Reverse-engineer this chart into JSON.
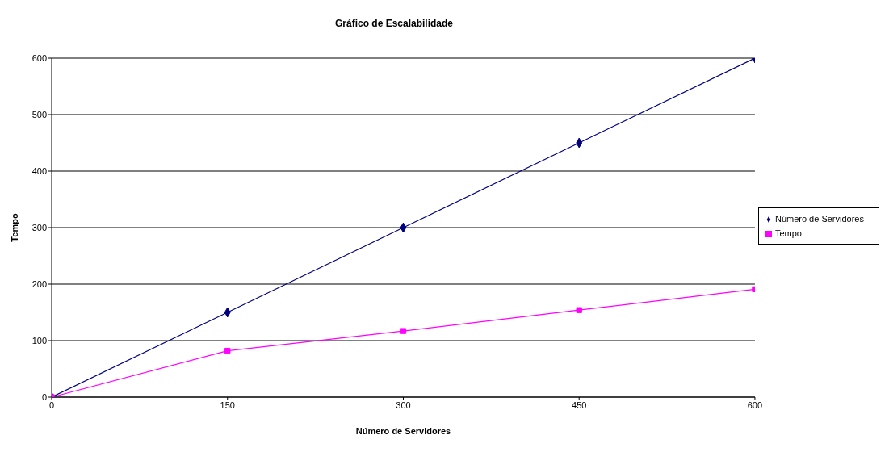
{
  "chart_data": {
    "type": "line",
    "title": "Gráfico de Escalabilidade",
    "xlabel": "Número de Servidores",
    "ylabel": "Tempo",
    "x": [
      0,
      150,
      300,
      450,
      600
    ],
    "series": [
      {
        "name": "Número de Servidores",
        "color": "#000080",
        "marker": "diamond",
        "values": [
          0,
          150,
          300,
          450,
          600
        ]
      },
      {
        "name": "Tempo",
        "color": "#ff00ff",
        "marker": "square",
        "values": [
          0,
          82,
          117,
          154,
          191
        ]
      }
    ],
    "xlim": [
      0,
      600
    ],
    "xticks": [
      0,
      150,
      300,
      450,
      600
    ],
    "ylim": [
      0,
      600
    ],
    "yticks": [
      0,
      100,
      200,
      300,
      400,
      500,
      600
    ],
    "grid": "y",
    "legend": "right",
    "line_style": "solid"
  }
}
